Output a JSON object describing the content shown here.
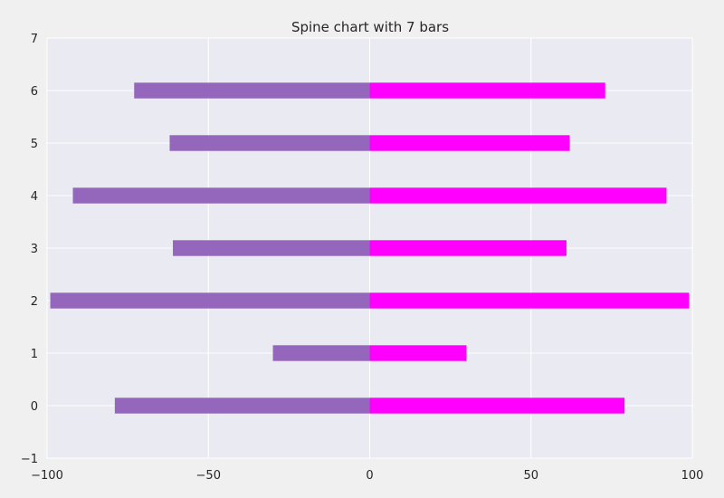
{
  "chart_data": {
    "type": "bar",
    "orientation": "horizontal",
    "title": "Spine chart with 7 bars",
    "xlabel": "",
    "ylabel": "",
    "categories": [
      0,
      1,
      2,
      3,
      4,
      5,
      6
    ],
    "series": [
      {
        "values": [
          -79,
          -30,
          -99,
          -61,
          -92,
          -62,
          -73
        ],
        "color": "#9467bd"
      },
      {
        "values": [
          79,
          30,
          99,
          61,
          92,
          62,
          73
        ],
        "color": "#ff00ff"
      }
    ],
    "xlim": [
      -100,
      100
    ],
    "ylim": [
      -1,
      7
    ],
    "xticks": [
      -100,
      -50,
      0,
      50,
      100
    ],
    "xtick_labels": [
      "−100",
      "−50",
      "0",
      "50",
      "100"
    ],
    "yticks": [
      -1,
      0,
      1,
      2,
      3,
      4,
      5,
      6,
      7
    ],
    "ytick_labels": [
      "−1",
      "0",
      "1",
      "2",
      "3",
      "4",
      "5",
      "6",
      "7"
    ],
    "grid": true,
    "plot_background": "#eaeaf2",
    "figure_background": "#f0f0f0",
    "grid_color": "#ffffff",
    "bar_height": 0.3
  }
}
